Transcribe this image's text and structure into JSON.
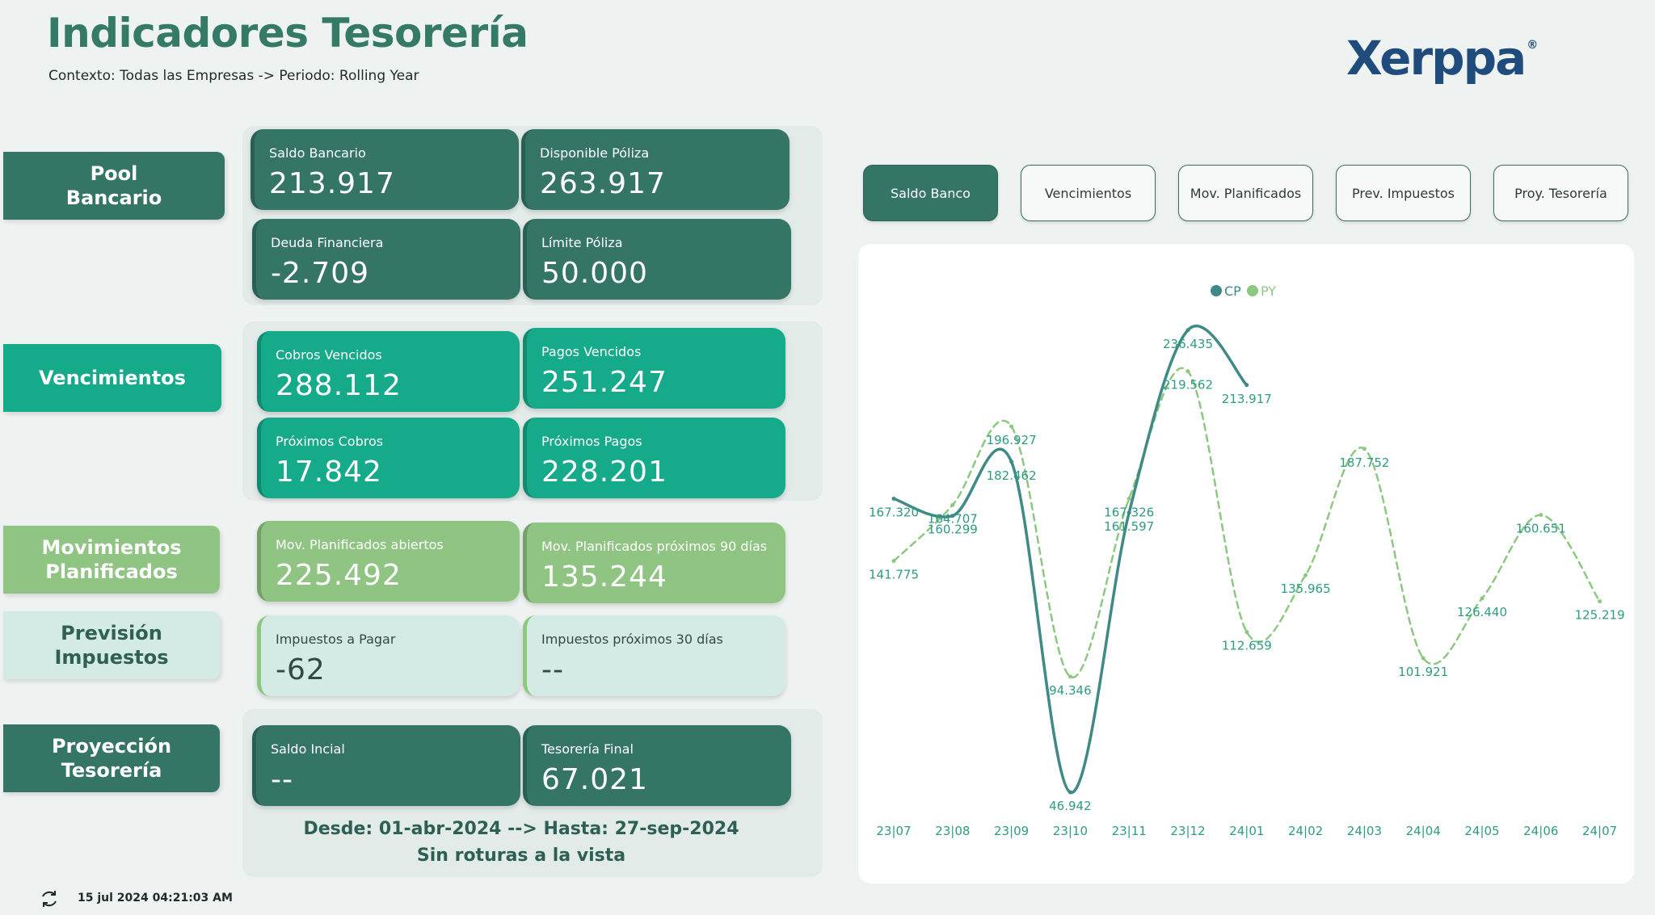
{
  "header": {
    "title": "Indicadores Tesorería",
    "context": "Contexto: Todas las Empresas -> Periodo: Rolling Year",
    "logo_text": "Xerppa",
    "logo_mark": "®"
  },
  "sections": {
    "pool": {
      "label": "Pool\nBancario",
      "cards": [
        {
          "label": "Saldo Bancario",
          "value": "213.917"
        },
        {
          "label": "Disponible Póliza",
          "value": "263.917"
        },
        {
          "label": "Deuda Financiera",
          "value": "-2.709"
        },
        {
          "label": "Límite Póliza",
          "value": "50.000"
        }
      ]
    },
    "vencimientos": {
      "label": "Vencimientos",
      "cards": [
        {
          "label": "Cobros Vencidos",
          "value": "288.112"
        },
        {
          "label": "Pagos Vencidos",
          "value": "251.247"
        },
        {
          "label": "Próximos Cobros",
          "value": "17.842"
        },
        {
          "label": "Próximos Pagos",
          "value": "228.201"
        }
      ]
    },
    "movimientos": {
      "label": "Movimientos\nPlanificados",
      "cards": [
        {
          "label": "Mov. Planificados abiertos",
          "value": "225.492"
        },
        {
          "label": "Mov. Planificados próximos 90 días",
          "value": "135.244"
        }
      ]
    },
    "impuestos": {
      "label": "Previsión\nImpuestos",
      "cards": [
        {
          "label": "Impuestos a Pagar",
          "value": "-62"
        },
        {
          "label": "Impuestos próximos 30 días",
          "value": "--"
        }
      ]
    },
    "proyeccion": {
      "label": "Proyección\nTesorería",
      "cards": [
        {
          "label": "Saldo Incial",
          "value": "--"
        },
        {
          "label": "Tesorería Final",
          "value": "67.021"
        }
      ],
      "range_line1": "Desde: 01-abr-2024 --> Hasta: 27-sep-2024",
      "range_line2": "Sin roturas a la vista"
    }
  },
  "footer": {
    "refresh_icon": "refresh-icon",
    "timestamp": "15 jul 2024 04:21:03 AM"
  },
  "tabs": [
    {
      "label": "Saldo Banco",
      "active": true
    },
    {
      "label": "Vencimientos",
      "active": false
    },
    {
      "label": "Mov. Planificados",
      "active": false
    },
    {
      "label": "Prev. Impuestos",
      "active": false
    },
    {
      "label": "Proy. Tesorería",
      "active": false
    }
  ],
  "colors": {
    "brand_green": "#347a66",
    "logo_blue": "#1f4c7c",
    "cp_line": "#3f8a84",
    "py_line": "#8cc880",
    "axis_label": "#2e9c80"
  },
  "chart_data": {
    "type": "line",
    "x": [
      "23|07",
      "23|08",
      "23|09",
      "23|10",
      "23|11",
      "23|12",
      "24|01",
      "24|02",
      "24|03",
      "24|04",
      "24|05",
      "24|06",
      "24|07"
    ],
    "series": [
      {
        "name": "CP",
        "values": [
          167320,
          160299,
          182462,
          46942,
          161597,
          236435,
          213917,
          null,
          null,
          null,
          null,
          null,
          null
        ],
        "labels": [
          "167.320",
          "160.299",
          "182.462",
          "46.942",
          "161.597",
          "236.435",
          "213.917",
          "",
          "",
          "",
          "",
          "",
          ""
        ]
      },
      {
        "name": "PY",
        "values": [
          141775,
          164707,
          196927,
          94346,
          167326,
          219562,
          112659,
          135965,
          187752,
          101921,
          126440,
          160651,
          125219
        ],
        "labels": [
          "141.775",
          "164.707",
          "196.927",
          "94.346",
          "167.326",
          "219.562",
          "112.659",
          "135.965",
          "187.752",
          "101.921",
          "126.440",
          "160.651",
          "125.219"
        ]
      }
    ],
    "legend": "top-center",
    "grid": false
  }
}
